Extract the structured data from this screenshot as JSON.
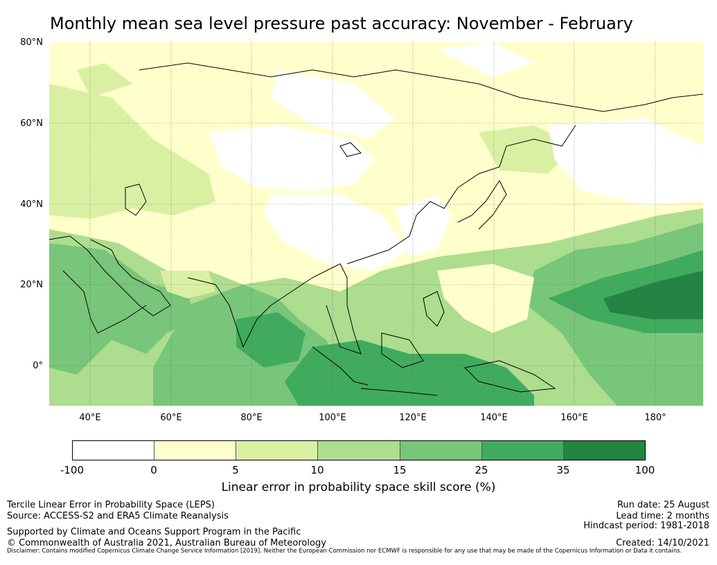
{
  "title": "Monthly mean sea level pressure past accuracy: November - February",
  "lat_labels": [
    "80°N",
    "60°N",
    "40°N",
    "20°N",
    "0°"
  ],
  "lon_labels": [
    "40°E",
    "60°E",
    "80°E",
    "100°E",
    "120°E",
    "140°E",
    "160°E",
    "180°"
  ],
  "colorbar": {
    "label": "Linear error in probability space skill score (%)",
    "ticks": [
      "-100",
      "0",
      "5",
      "10",
      "15",
      "25",
      "35",
      "100"
    ],
    "colors": [
      "#ffffff",
      "#ffffcc",
      "#d9f0a3",
      "#addd8e",
      "#78c679",
      "#41ab5d",
      "#238443"
    ]
  },
  "footer": {
    "left1": "Tercile Linear Error in Probability Space (LEPS)",
    "left2": "Source: ACCESS-S2 and ERA5 Climate Reanalysis",
    "left3": "Supported by Climate and Oceans Support Program in the Pacific",
    "left4": "© Commonwealth of Australia 2021, Australian Bureau of Meteorology",
    "right1": "Run date: 25 August",
    "right2": "Lead time: 2 months",
    "right3": "Hindcast period: 1981-2018",
    "right4": "Created: 14/10/2021",
    "disclaimer": "Disclaimer: Contains modified Copernicus Climate Change Service Information [2019]. Neither the European Commission nor ECMWF is responsible for any use that may be made of the Copernicus Information or Data it contains."
  }
}
